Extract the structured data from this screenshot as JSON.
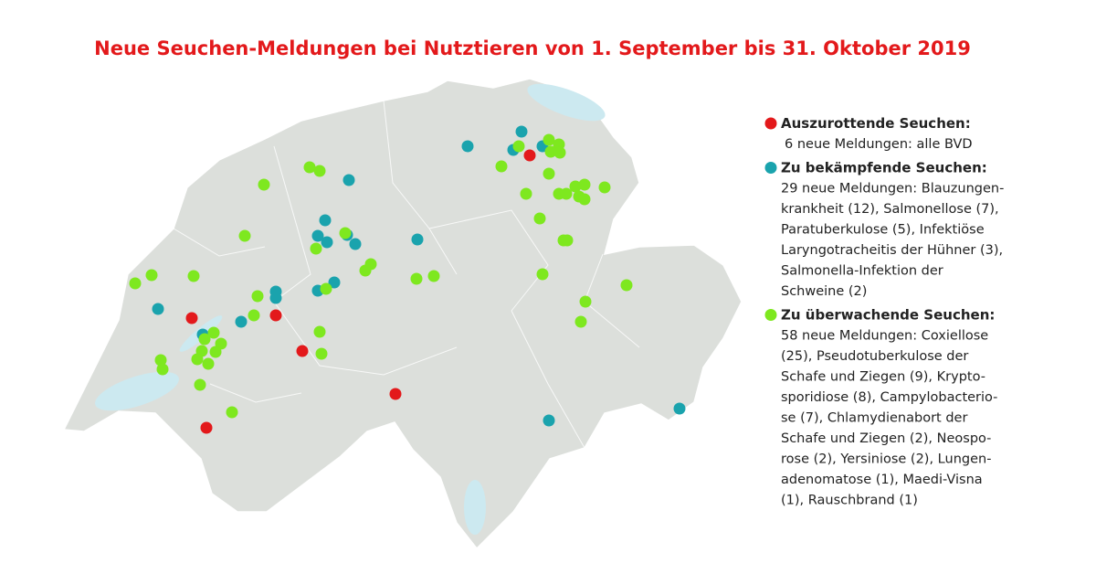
{
  "title": "Neue Seuchen-Meldungen bei Nutztieren von 1. September bis 31. Oktober 2019",
  "legend": [
    {
      "heading": "Auszurottende Seuchen:",
      "color": "#e3191b",
      "lines": [
        "6 neue Meldungen: alle BVD"
      ]
    },
    {
      "heading": "Zu bekämpfende Seuchen:",
      "color": "#1aa3ad",
      "lines": [
        "29 neue Meldungen: Blauzungen-",
        "krankheit (12), Salmonellose (7),",
        "Paratuberkulose (5), Infektiöse",
        "Laryngotracheitis der Hühner (3),",
        "Salmonella-Infektion der",
        "Schweine (2)"
      ]
    },
    {
      "heading": "Zu überwachende Seuchen:",
      "color": "#7ee81f",
      "lines": [
        "58 neue Meldungen: Coxiellose",
        "(25), Pseudotuberkulose der",
        "Schafe und Ziegen (9), Krypto-",
        "sporidiose (8), Campylobacterio-",
        "se (7), Chlamydienabort der",
        "Schafe und Ziegen (2), Neospo-",
        "rose (2), Yersiniose (2), Lungen-",
        "adenomatose (1), Maedi-Visna",
        "(1), Rauschbrand (1)"
      ]
    }
  ]
}
